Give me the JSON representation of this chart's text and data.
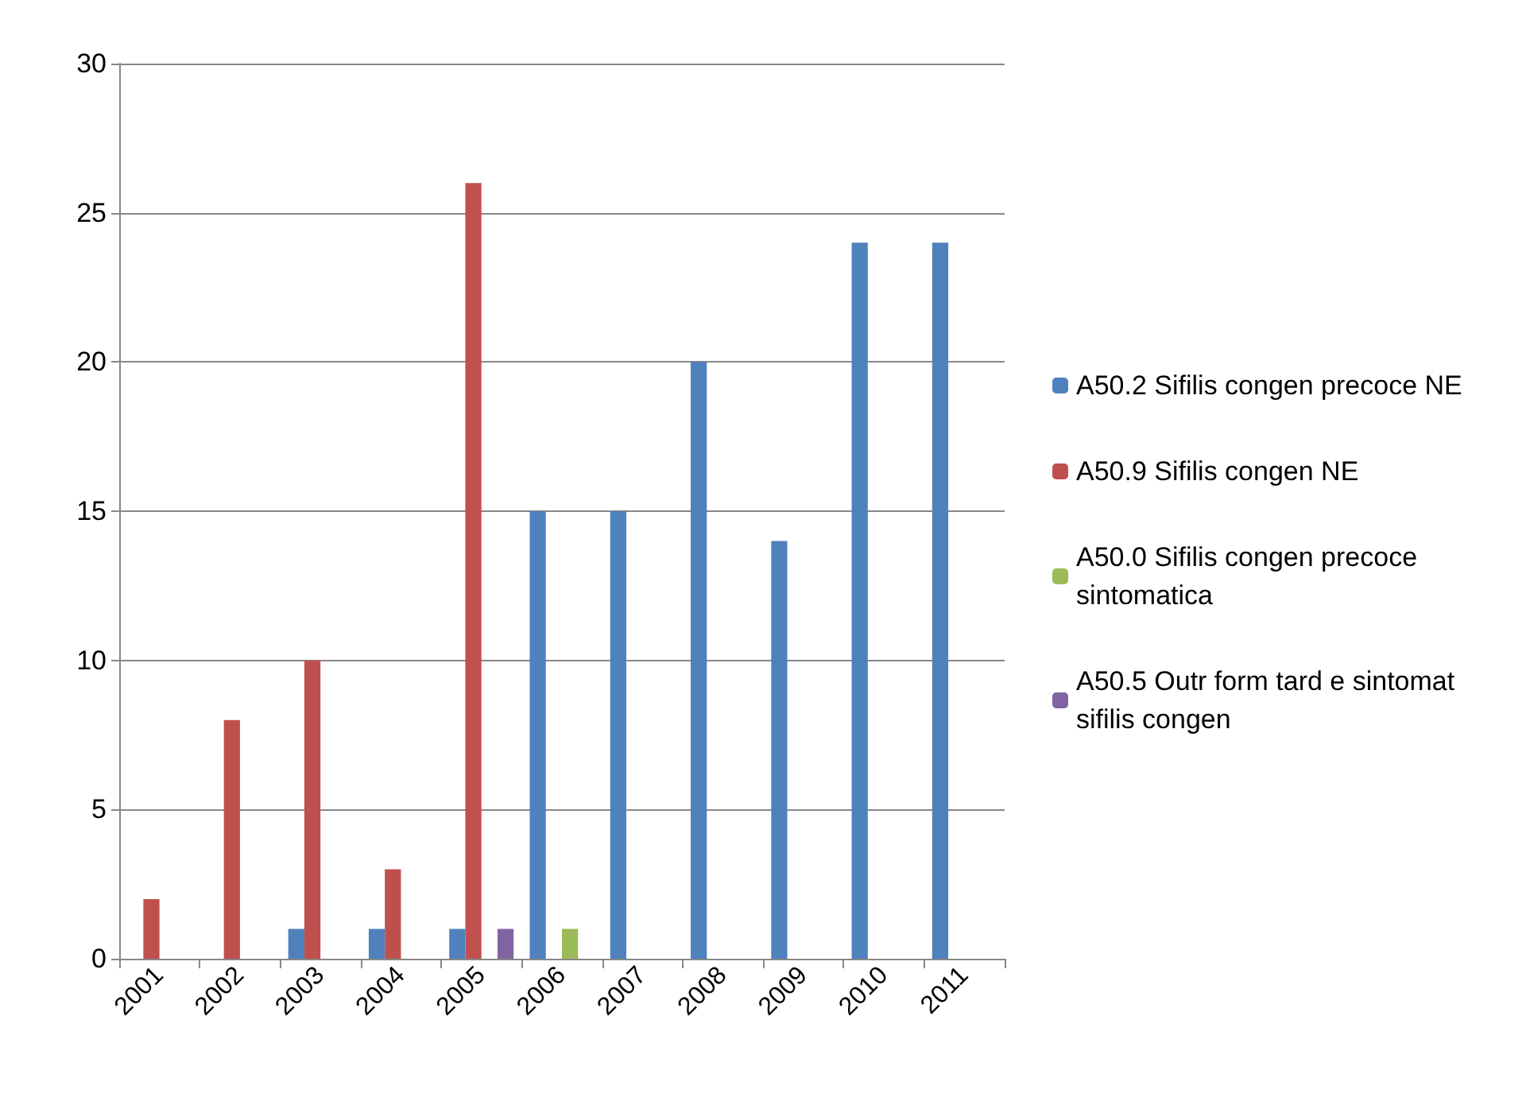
{
  "chart_data": {
    "type": "bar",
    "categories": [
      "2001",
      "2002",
      "2003",
      "2004",
      "2005",
      "2006",
      "2007",
      "2008",
      "2009",
      "2010",
      "2011"
    ],
    "series": [
      {
        "name": "A50.2 Sifilis congen precoce NE",
        "color": "#4f81bd",
        "values": [
          0,
          0,
          1,
          1,
          1,
          15,
          15,
          20,
          14,
          24,
          24
        ]
      },
      {
        "name": "A50.9 Sifilis congen NE",
        "color": "#c0504d",
        "values": [
          2,
          8,
          10,
          3,
          26,
          0,
          0,
          0,
          0,
          0,
          0
        ]
      },
      {
        "name": "A50.0 Sifilis congen precoce sintomatica",
        "color": "#9bbb59",
        "values": [
          0,
          0,
          0,
          0,
          0,
          1,
          0,
          0,
          0,
          0,
          0
        ]
      },
      {
        "name": "A50.5 Outr form tard e sintomat sifilis congen",
        "color": "#8064a2",
        "values": [
          0,
          0,
          0,
          0,
          1,
          0,
          0,
          0,
          0,
          0,
          0
        ]
      }
    ],
    "ylim": [
      0,
      30
    ],
    "yticks": [
      0,
      5,
      10,
      15,
      20,
      25,
      30
    ],
    "grid": "y",
    "legend": "right"
  }
}
